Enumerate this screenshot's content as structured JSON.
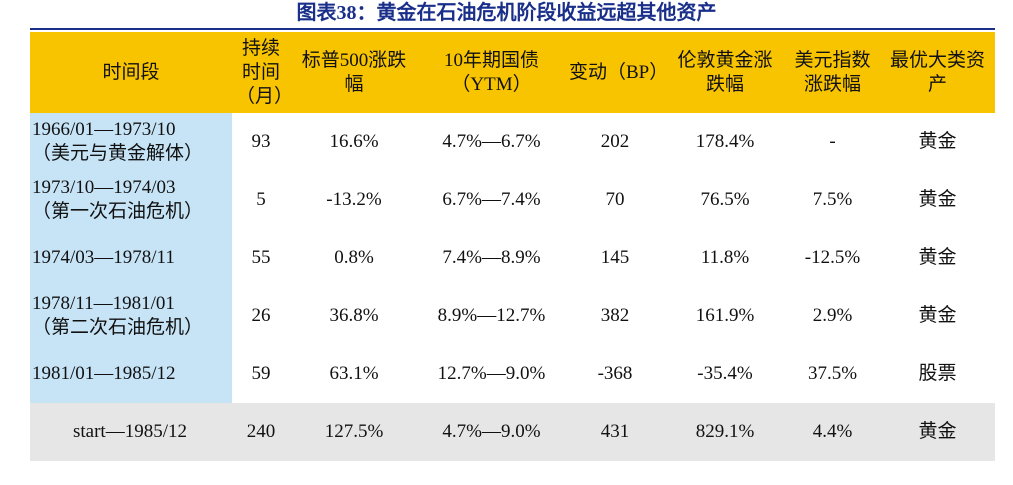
{
  "title": "图表38：黄金在石油危机阶段收益远超其他资产",
  "table": {
    "header": [
      "时间段",
      "持续时间（月）",
      "标普500涨跌幅",
      "10年期国债（YTM）",
      "变动（BP）",
      "伦敦黄金涨跌幅",
      "美元指数涨跌幅",
      "最优大类资产"
    ],
    "rows": [
      [
        "1966/01—1973/10\n（美元与黄金解体）",
        "93",
        "16.6%",
        "4.7%—6.7%",
        "202",
        "178.4%",
        "-",
        "黄金"
      ],
      [
        "1973/10—1974/03\n（第一次石油危机）",
        "5",
        "-13.2%",
        "6.7%—7.4%",
        "70",
        "76.5%",
        "7.5%",
        "黄金"
      ],
      [
        "1974/03—1978/11",
        "55",
        "0.8%",
        "7.4%—8.9%",
        "145",
        "11.8%",
        "-12.5%",
        "黄金"
      ],
      [
        "1978/11—1981/01\n（第二次石油危机）",
        "26",
        "36.8%",
        "8.9%—12.7%",
        "382",
        "161.9%",
        "2.9%",
        "黄金"
      ],
      [
        "1981/01—1985/12",
        "59",
        "63.1%",
        "12.7%—9.0%",
        "-368",
        "-35.4%",
        "37.5%",
        "股票"
      ],
      [
        "start—1985/12",
        "240",
        "127.5%",
        "4.7%—9.0%",
        "431",
        "829.1%",
        "4.4%",
        "黄金"
      ]
    ]
  }
}
